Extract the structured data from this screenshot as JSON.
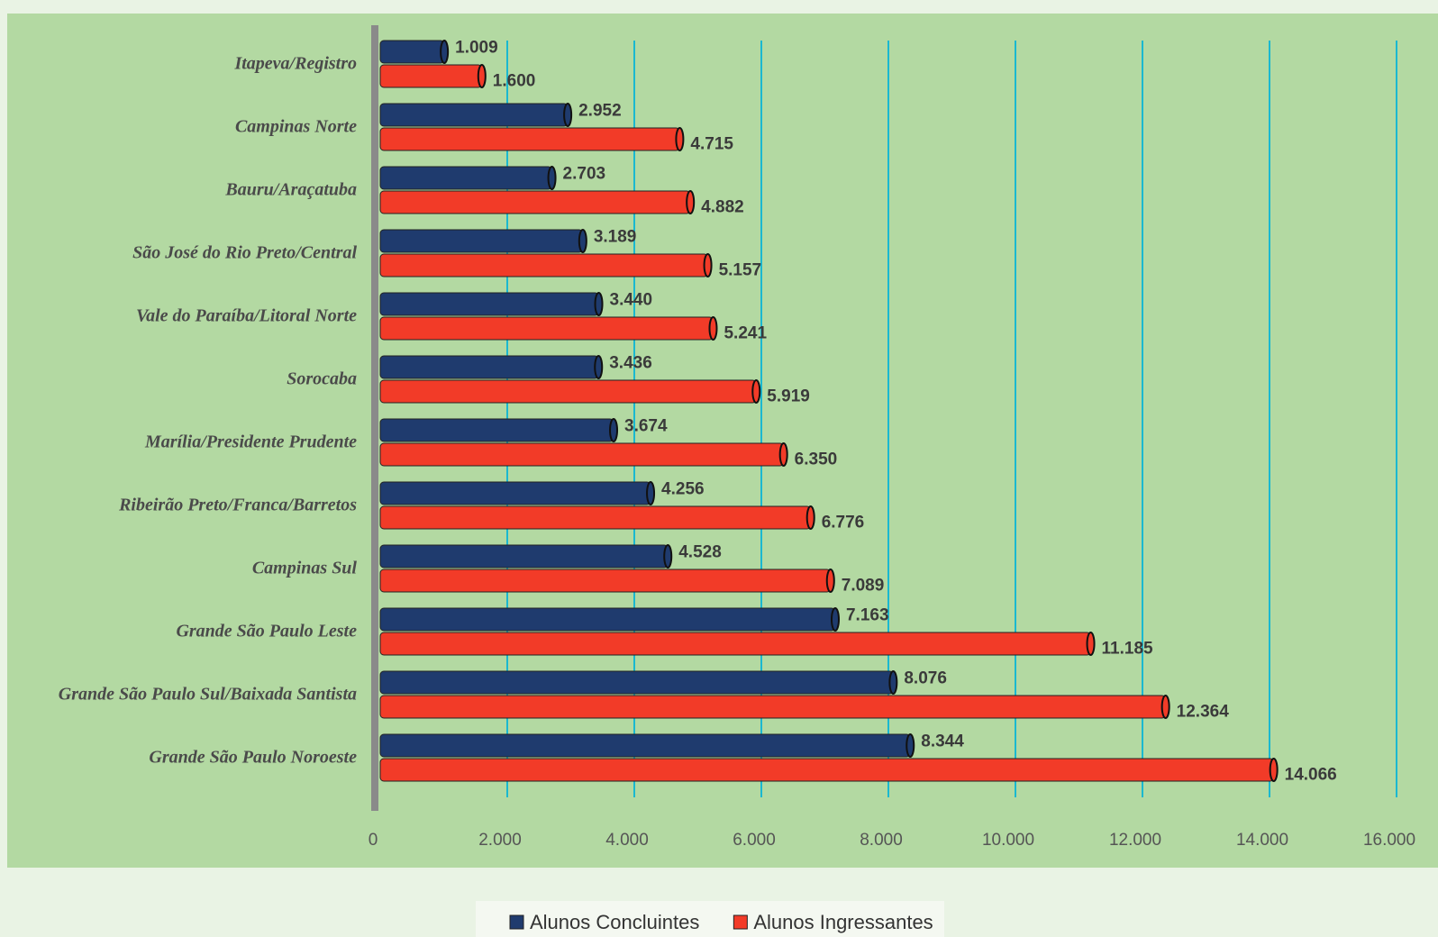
{
  "chart_data": {
    "type": "bar",
    "orientation": "horizontal",
    "categories": [
      "Itapeva/Registro",
      "Campinas Norte",
      "Bauru/Araçatuba",
      "São José do Rio Preto/Central",
      "Vale do Paraíba/Litoral Norte",
      "Sorocaba",
      "Marília/Presidente Prudente",
      "Ribeirão Preto/Franca/Barretos",
      "Campinas Sul",
      "Grande São Paulo Leste",
      "Grande São Paulo Sul/Baixada Santista",
      "Grande São Paulo Noroeste"
    ],
    "series": [
      {
        "name": "Alunos Concluintes",
        "color": "#1f3b6e",
        "values": [
          1009,
          2952,
          2703,
          3189,
          3440,
          3436,
          3674,
          4256,
          4528,
          7163,
          8076,
          8344
        ],
        "value_labels": [
          "1.009",
          "2.952",
          "2.703",
          "3.189",
          "3.440",
          "3.436",
          "3.674",
          "4.256",
          "4.528",
          "7.163",
          "8.076",
          "8.344"
        ]
      },
      {
        "name": "Alunos Ingressantes",
        "color": "#f23b28",
        "values": [
          1600,
          4715,
          4882,
          5157,
          5241,
          5919,
          6350,
          6776,
          7089,
          11185,
          12364,
          14066
        ],
        "value_labels": [
          "1.600",
          "4.715",
          "4.882",
          "5.157",
          "5.241",
          "5.919",
          "6.350",
          "6.776",
          "7.089",
          "11.185",
          "12.364",
          "14.066"
        ]
      }
    ],
    "xlim": [
      0,
      16000
    ],
    "xticks": [
      0,
      {
        "value": 2000,
        "label": "2.000"
      },
      {
        "value": 4000,
        "label": "4.000"
      },
      {
        "value": 6000,
        "label": "6.000"
      },
      {
        "value": 8000,
        "label": "8.000"
      },
      {
        "value": 10000,
        "label": "10.000"
      },
      {
        "value": 12000,
        "label": "12.000"
      },
      {
        "value": 14000,
        "label": "14.000"
      },
      {
        "value": 16000,
        "label": "16.000"
      }
    ],
    "grid": true,
    "legend": "bottom"
  }
}
